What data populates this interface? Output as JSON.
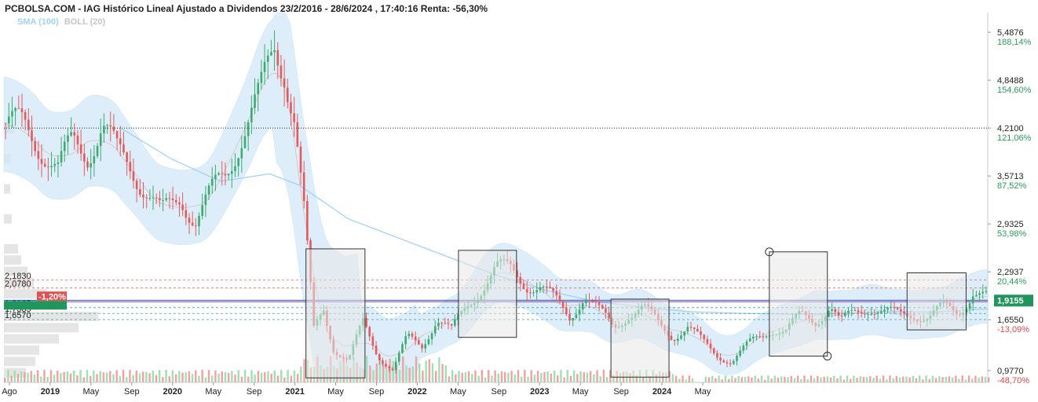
{
  "title": "PCBOLSA.COM - IAG Histórico Lineal Ajustado a Dividendos 23/2/2016 - 28/6/2024 , 17:40:16 Renta: -56,30%",
  "legend": {
    "sma": "SMA (100)",
    "boll": "BOLL (20)"
  },
  "colors": {
    "up": "#3daa6e",
    "down": "#e45a5a",
    "band": "#cfe8f8",
    "sma": "#9fd3f2",
    "boll_mid": "#d9c9c9",
    "volume_up": "#9ee0b4",
    "volume_down": "#f3a0a0",
    "current_badge": "#22955c",
    "left_badge": "#e05050",
    "pct_positive": "#2a9d5c",
    "pct_negative": "#e04848"
  },
  "chart_data": {
    "type": "candlestick",
    "ylim": [
      0.82,
      5.75
    ],
    "y_axis_labels": [
      {
        "value": 5.4876,
        "price": "5,4876",
        "pct": "188,14%"
      },
      {
        "value": 4.8488,
        "price": "4,8488",
        "pct": "154,60%"
      },
      {
        "value": 4.21,
        "price": "4,2100",
        "pct": "121,06%"
      },
      {
        "value": 3.5713,
        "price": "3,5713",
        "pct": "87,52%"
      },
      {
        "value": 2.9325,
        "price": "2,9325",
        "pct": "53,98%"
      },
      {
        "value": 2.2937,
        "price": "2,2937",
        "pct": "20,44%"
      },
      {
        "value": 1.655,
        "price": "1,6550",
        "pct": "-13,09%"
      },
      {
        "value": 0.977,
        "price": "0,9770",
        "pct": "-48,70%"
      }
    ],
    "x_tick_labels": [
      "Ago",
      "2019",
      "May",
      "Sep",
      "2020",
      "May",
      "Sep",
      "2021",
      "May",
      "Sep",
      "2022",
      "May",
      "Sep",
      "2023",
      "May",
      "Sep",
      "2024",
      "May"
    ],
    "x_tick_bold": [
      false,
      true,
      false,
      false,
      true,
      false,
      false,
      true,
      false,
      false,
      true,
      false,
      false,
      true,
      false,
      false,
      true,
      false
    ],
    "current_price": {
      "value": 1.9155,
      "label": "1,9155"
    },
    "reference_line": {
      "value": 4.21
    },
    "left_levels": [
      {
        "value": 2.183,
        "label": "2,1830"
      },
      {
        "value": 2.078,
        "label": "2,0780"
      },
      {
        "value": 1.8165,
        "label": "1,8165"
      },
      {
        "value": 1.7385,
        "label": "1,7385"
      },
      {
        "value": 1.657,
        "label": "1,6570"
      }
    ],
    "left_badge": {
      "value": 1.895,
      "label": "-1,20%"
    },
    "price_path": [
      [
        0,
        4.28
      ],
      [
        0.02,
        4.2
      ],
      [
        0.04,
        3.95
      ],
      [
        0.055,
        3.65
      ],
      [
        0.07,
        4.0
      ],
      [
        0.085,
        3.9
      ],
      [
        0.1,
        4.25
      ],
      [
        0.115,
        3.85
      ],
      [
        0.13,
        3.7
      ],
      [
        0.145,
        3.4
      ],
      [
        0.16,
        3.05
      ],
      [
        0.17,
        3.15
      ],
      [
        0.18,
        3.3
      ],
      [
        0.195,
        3.0
      ],
      [
        0.21,
        3.3
      ],
      [
        0.225,
        3.6
      ],
      [
        0.24,
        4.1
      ],
      [
        0.26,
        4.6
      ],
      [
        0.275,
        5.3
      ],
      [
        0.285,
        5.05
      ],
      [
        0.295,
        4.4
      ],
      [
        0.305,
        3.1
      ],
      [
        0.315,
        1.5
      ],
      [
        0.325,
        1.8
      ],
      [
        0.335,
        1.3
      ],
      [
        0.35,
        1.1
      ],
      [
        0.365,
        1.6
      ],
      [
        0.38,
        1.2
      ],
      [
        0.395,
        1.0
      ],
      [
        0.41,
        1.4
      ],
      [
        0.425,
        1.3
      ],
      [
        0.44,
        1.7
      ],
      [
        0.455,
        1.5
      ],
      [
        0.47,
        1.8
      ],
      [
        0.485,
        2.1
      ],
      [
        0.5,
        2.35
      ],
      [
        0.515,
        2.3
      ],
      [
        0.53,
        2.15
      ],
      [
        0.545,
        2.1
      ],
      [
        0.56,
        1.9
      ],
      [
        0.575,
        1.7
      ],
      [
        0.59,
        2.0
      ],
      [
        0.605,
        1.75
      ],
      [
        0.62,
        1.55
      ],
      [
        0.635,
        1.75
      ],
      [
        0.65,
        1.8
      ],
      [
        0.665,
        1.6
      ],
      [
        0.68,
        1.45
      ],
      [
        0.695,
        1.55
      ],
      [
        0.71,
        1.35
      ],
      [
        0.725,
        1.2
      ],
      [
        0.74,
        1.1
      ],
      [
        0.76,
        1.35
      ],
      [
        0.78,
        1.55
      ],
      [
        0.795,
        1.5
      ],
      [
        0.81,
        1.7
      ],
      [
        0.825,
        1.65
      ],
      [
        0.84,
        1.85
      ],
      [
        0.85,
        1.6
      ],
      [
        0.865,
        1.75
      ],
      [
        0.88,
        1.85
      ],
      [
        0.895,
        1.75
      ],
      [
        0.91,
        1.7
      ],
      [
        0.925,
        1.75
      ],
      [
        0.94,
        1.7
      ],
      [
        0.955,
        1.8
      ],
      [
        0.97,
        1.75
      ],
      [
        0.985,
        2.05
      ],
      [
        1.0,
        1.93
      ]
    ],
    "sma_path": [
      [
        0.12,
        4.2
      ],
      [
        0.17,
        3.8
      ],
      [
        0.22,
        3.5
      ],
      [
        0.27,
        3.6
      ],
      [
        0.3,
        3.45
      ],
      [
        0.35,
        3.0
      ],
      [
        0.4,
        2.75
      ],
      [
        0.45,
        2.5
      ],
      [
        0.5,
        2.25
      ],
      [
        0.55,
        2.05
      ],
      [
        0.6,
        1.9
      ],
      [
        0.65,
        1.82
      ],
      [
        0.7,
        1.76
      ],
      [
        0.75,
        1.74
      ],
      [
        0.8,
        1.73
      ],
      [
        0.85,
        1.74
      ],
      [
        0.9,
        1.76
      ],
      [
        0.95,
        1.76
      ],
      [
        1.0,
        1.8
      ]
    ],
    "rectangles": [
      {
        "x0": 0.307,
        "x1": 0.367,
        "hi": 2.6,
        "lo": 0.88
      },
      {
        "x0": 0.462,
        "x1": 0.521,
        "hi": 2.58,
        "lo": 1.42
      },
      {
        "x0": 0.617,
        "x1": 0.676,
        "hi": 1.93,
        "lo": 0.89
      },
      {
        "x0": 0.778,
        "x1": 0.837,
        "hi": 2.56,
        "lo": 1.17
      },
      {
        "x0": 0.918,
        "x1": 0.978,
        "hi": 2.28,
        "lo": 1.52
      }
    ]
  }
}
